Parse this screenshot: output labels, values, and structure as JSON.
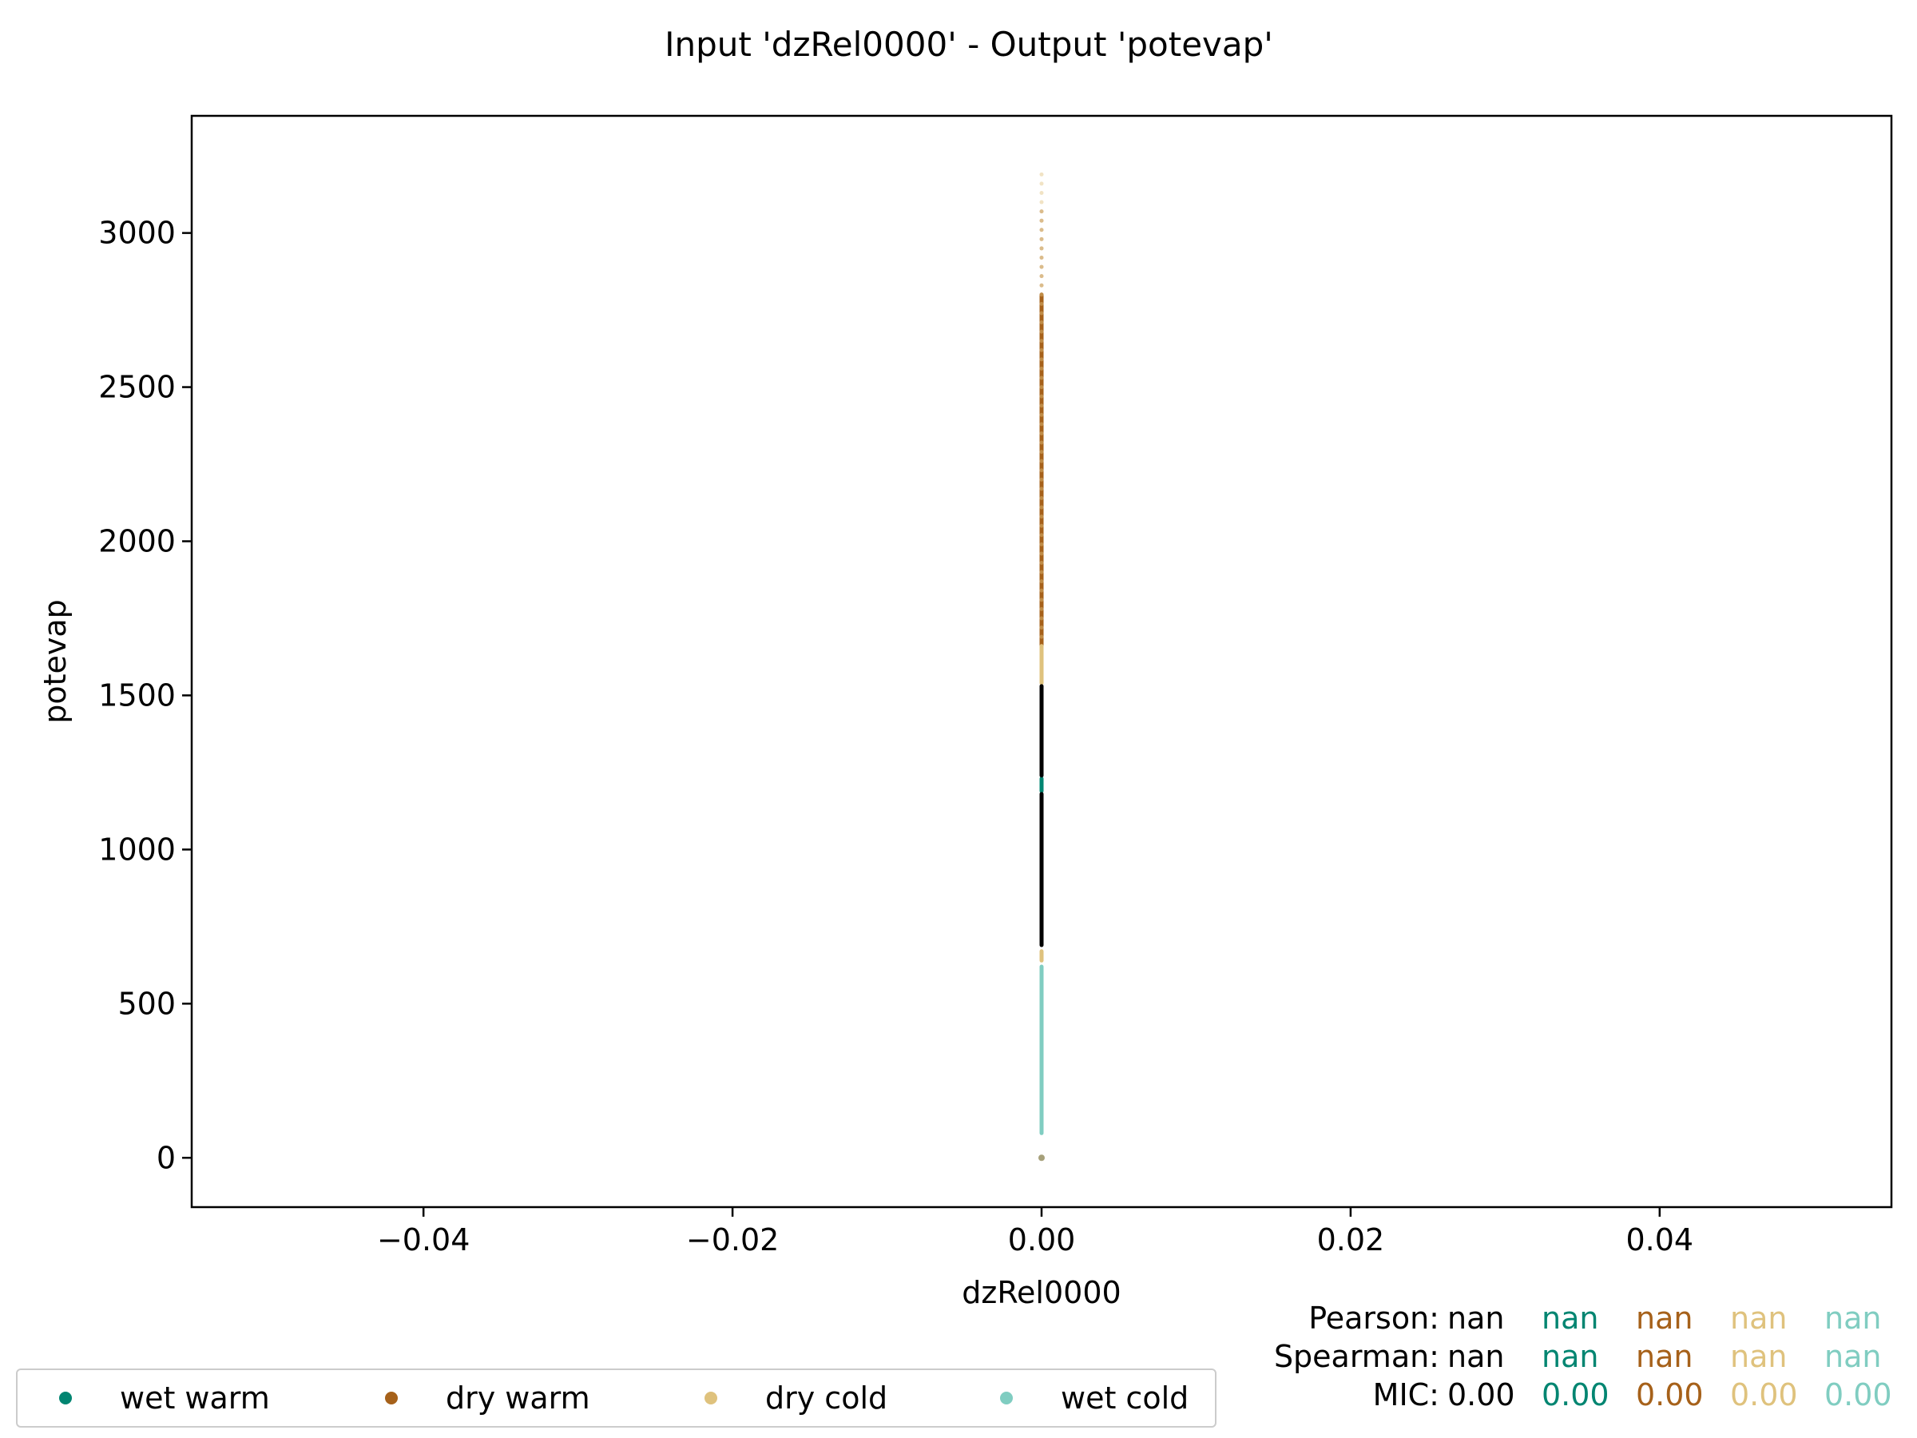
{
  "chart_data": {
    "type": "scatter",
    "title": "Input 'dzRel0000' - Output 'potevap'",
    "xlabel": "dzRel0000",
    "ylabel": "potevap",
    "xlim": [
      -0.055,
      0.055
    ],
    "ylim": [
      -160,
      3380
    ],
    "xticks": [
      -0.04,
      -0.02,
      0.0,
      0.02,
      0.04
    ],
    "xtick_labels": [
      "−0.04",
      "−0.02",
      "0.00",
      "0.02",
      "0.04"
    ],
    "yticks": [
      0,
      500,
      1000,
      1500,
      2000,
      2500,
      3000
    ],
    "ytick_labels": [
      "0",
      "500",
      "1000",
      "1500",
      "2000",
      "2500",
      "3000"
    ],
    "grid": false,
    "legend_position": "bottom-left",
    "series": [
      {
        "name": "wet warm",
        "color": "#018571",
        "x": 0.0,
        "y_ranges": [
          [
            1190,
            1230
          ]
        ]
      },
      {
        "name": "dry warm",
        "color": "#a6611a",
        "x": 0.0,
        "y_ranges": [
          [
            1660,
            1720
          ],
          [
            1720,
            2800
          ]
        ],
        "sparse_to": 3070
      },
      {
        "name": "dry cold",
        "color": "#dfc27d",
        "x": 0.0,
        "y_ranges": [
          [
            640,
            670
          ],
          [
            1540,
            1660
          ]
        ],
        "sparse_to": 3210
      },
      {
        "name": "wet cold",
        "color": "#80cdc1",
        "x": 0.0,
        "y_ranges": [
          [
            80,
            620
          ]
        ]
      },
      {
        "name": "",
        "color": "#000000",
        "x": 0.0,
        "y_ranges": [
          [
            690,
            1180
          ],
          [
            1240,
            1530
          ]
        ]
      }
    ]
  },
  "stats": {
    "pearson_label": "Pearson:",
    "spearman_label": "Spearman:",
    "mic_label": "MIC:",
    "pearson": [
      "nan",
      "nan",
      "nan",
      "nan",
      "nan"
    ],
    "spearman": [
      "nan",
      "nan",
      "nan",
      "nan",
      "nan"
    ],
    "mic": [
      "0.00",
      "0.00",
      "0.00",
      "0.00",
      "0.00"
    ],
    "colors": [
      "#000000",
      "#018571",
      "#a6611a",
      "#dfc27d",
      "#80cdc1"
    ]
  },
  "legend": {
    "items": [
      {
        "label": "wet warm",
        "color": "#018571"
      },
      {
        "label": "dry warm",
        "color": "#a6611a"
      },
      {
        "label": "dry cold",
        "color": "#dfc27d"
      },
      {
        "label": "wet cold",
        "color": "#80cdc1"
      }
    ]
  }
}
